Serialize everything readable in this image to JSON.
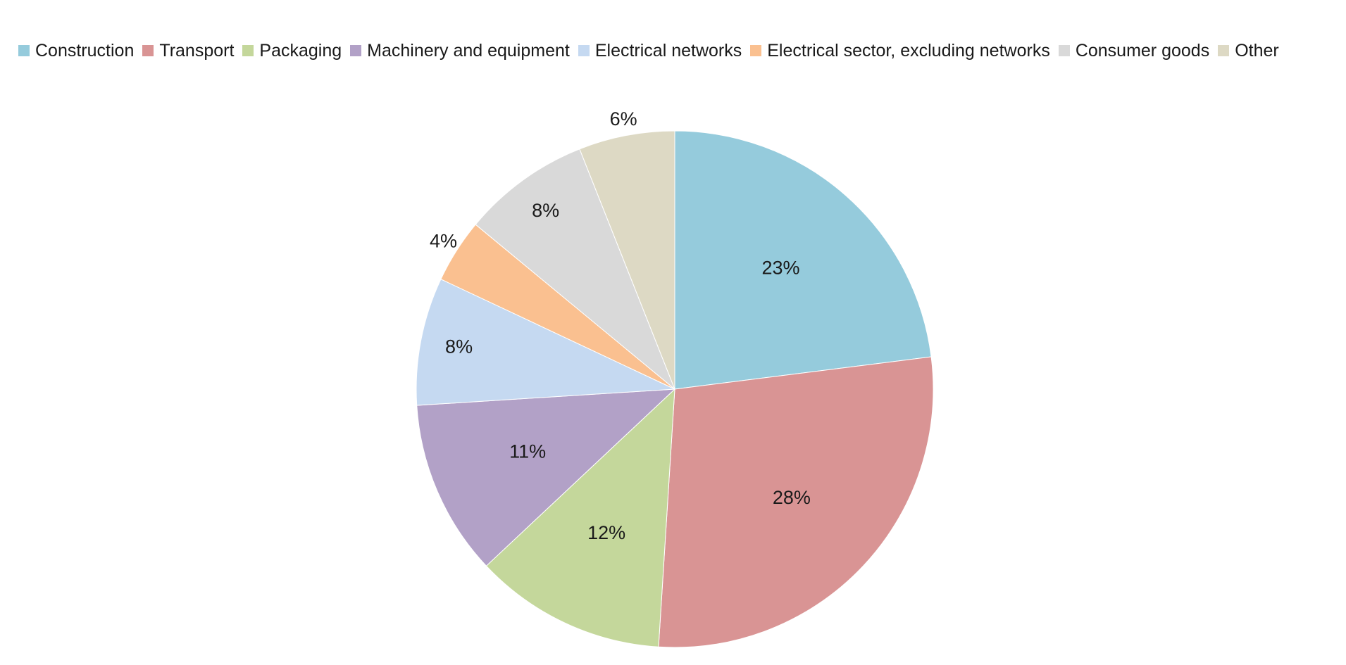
{
  "chart_data": {
    "type": "pie",
    "title": "",
    "legend_position": "top",
    "categories": [
      "Construction",
      "Transport",
      "Packaging",
      "Machinery and equipment",
      "Electrical networks",
      "Electrical sector, excluding networks",
      "Consumer goods",
      "Other"
    ],
    "values": [
      23,
      28,
      12,
      11,
      8,
      4,
      8,
      6
    ],
    "labels": [
      "23%",
      "28%",
      "12%",
      "11%",
      "8%",
      "4%",
      "8%",
      "6%"
    ],
    "colors": [
      "#95CBDC",
      "#D99494",
      "#C4D79B",
      "#B2A1C7",
      "#C5D9F1",
      "#FAC090",
      "#D9D9D9",
      "#DDD9C4"
    ],
    "unit": "%"
  }
}
